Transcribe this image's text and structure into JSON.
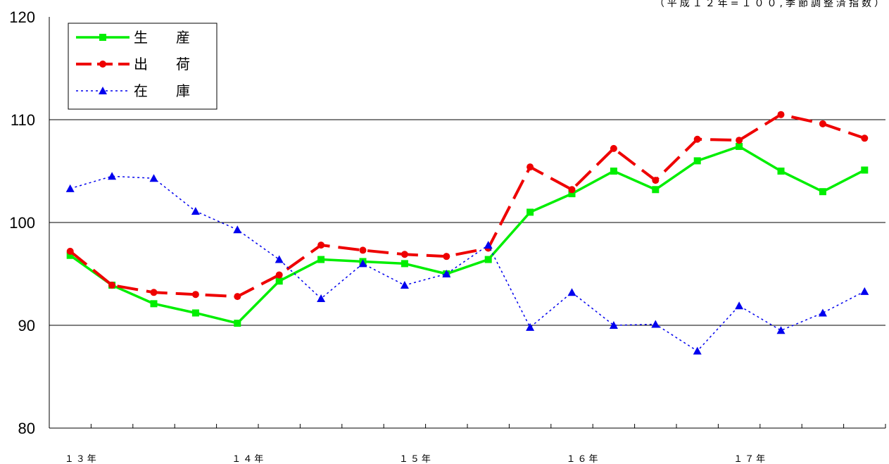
{
  "chart_data": {
    "type": "line",
    "note": "（平成１２年=１００,季節調整済指数）",
    "ylim": [
      80,
      120
    ],
    "yticks": [
      80,
      90,
      100,
      110,
      120
    ],
    "grid": true,
    "legend_position": "top-left",
    "x_labels": [
      "１３年",
      "１４年",
      "１５年",
      "１６年",
      "１７年"
    ],
    "series": [
      {
        "name": "生　　産",
        "color": "#00ee00",
        "marker": "square",
        "line": "solid",
        "values": [
          96.8,
          93.9,
          92.1,
          91.2,
          90.2,
          94.3,
          96.4,
          96.2,
          96.0,
          95.0,
          96.4,
          101.0,
          102.8,
          105.0,
          103.2,
          106.0,
          107.4,
          105.0,
          103.0,
          105.1
        ]
      },
      {
        "name": "出　　荷",
        "color": "#ee0000",
        "marker": "circle",
        "line": "dashed",
        "values": [
          97.2,
          93.9,
          93.2,
          93.0,
          92.8,
          94.9,
          97.8,
          97.3,
          96.9,
          96.7,
          97.5,
          105.4,
          103.2,
          107.2,
          104.1,
          108.1,
          108.0,
          110.5,
          109.6,
          108.2
        ]
      },
      {
        "name": "在　　庫",
        "color": "#0000ee",
        "marker": "triangle",
        "line": "dotted",
        "values": [
          103.3,
          104.5,
          104.3,
          101.1,
          99.3,
          96.4,
          92.6,
          96.0,
          93.9,
          95.0,
          97.8,
          89.8,
          93.2,
          90.0,
          90.1,
          87.5,
          91.9,
          89.5,
          91.2,
          93.3
        ]
      }
    ]
  }
}
